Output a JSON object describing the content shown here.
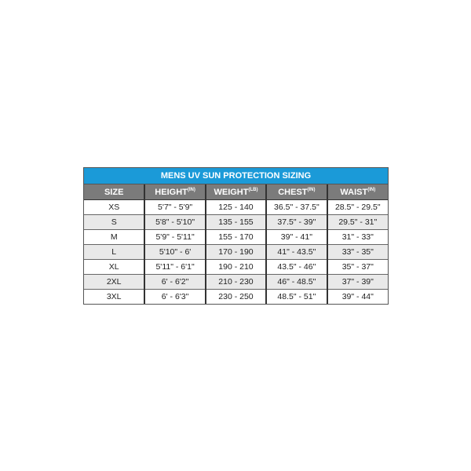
{
  "title": "MENS UV SUN PROTECTION SIZING",
  "headers": [
    {
      "label": "SIZE",
      "unit": ""
    },
    {
      "label": "HEIGHT",
      "unit": "(IN)"
    },
    {
      "label": "WEIGHT",
      "unit": "(LB)"
    },
    {
      "label": "CHEST",
      "unit": "(IN)"
    },
    {
      "label": "WAIST",
      "unit": "(IN)"
    }
  ],
  "rows": [
    [
      "XS",
      "5'7\" - 5'9\"",
      "125 - 140",
      "36.5\" - 37.5\"",
      "28.5\" - 29.5\""
    ],
    [
      "S",
      "5'8\" - 5'10\"",
      "135 - 155",
      "37.5\" - 39\"",
      "29.5\" - 31\""
    ],
    [
      "M",
      "5'9\" - 5'11\"",
      "155 - 170",
      "39\" - 41\"",
      "31\" - 33\""
    ],
    [
      "L",
      "5'10\" - 6'",
      "170 - 190",
      "41\" - 43.5\"",
      "33\" - 35\""
    ],
    [
      "XL",
      "5'11\" - 6'1\"",
      "190 - 210",
      "43.5\" - 46\"",
      "35\" - 37\""
    ],
    [
      "2XL",
      "6' - 6'2\"",
      "210 - 230",
      "46\" - 48.5\"",
      "37\" - 39\""
    ],
    [
      "3XL",
      "6' - 6'3\"",
      "230 - 250",
      "48.5\" - 51\"",
      "39\" - 44\""
    ]
  ],
  "colors": {
    "title_bar": "#1b9ad8",
    "header_row": "#7b7b7b",
    "alt_row": "#e9e9e9"
  }
}
